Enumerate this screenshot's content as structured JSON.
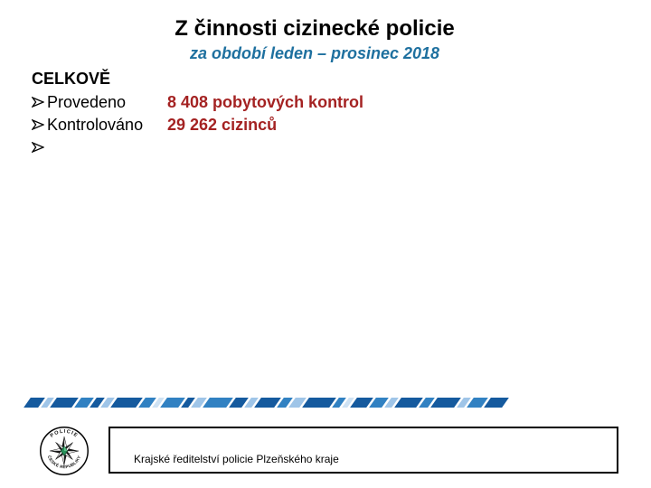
{
  "slide": {
    "title": "Z činnosti cizinecké policie",
    "subtitle": "za období leden – prosinec 2018"
  },
  "content": {
    "heading": "CELKOVĚ",
    "bullet_char": "➢",
    "rows": [
      {
        "label": "Provedeno",
        "value": "8 408 pobytových kontrol"
      },
      {
        "label": "Kontrolováno",
        "value": "29 262 cizinců"
      },
      {
        "label": "",
        "value": ""
      }
    ]
  },
  "footer": {
    "org": "Krajské ředitelství policie Plzeňského kraje",
    "logo_ring_top": "POLICIE",
    "logo_ring_bottom": "ČESKÉ REPUBLIKY"
  },
  "colors": {
    "title": "#000000",
    "subtitle": "#1e709f",
    "value_red": "#a42222",
    "logo_green": "#27915a"
  },
  "divider": {
    "colors": {
      "d": "#155a9e",
      "m": "#3181c2",
      "l": "#9fc5e8",
      "x": "#cfe2f3"
    },
    "segments": [
      "d16",
      "l7",
      "d24",
      "m14",
      "d9",
      "l8",
      "d28",
      "m12",
      "x6",
      "m20",
      "d8",
      "l10",
      "m26",
      "d14",
      "l8",
      "d22",
      "m10",
      "l12",
      "d30",
      "m8",
      "x6",
      "d18",
      "m14",
      "l8",
      "d24",
      "m10",
      "d26",
      "l8",
      "m16",
      "d20"
    ]
  }
}
